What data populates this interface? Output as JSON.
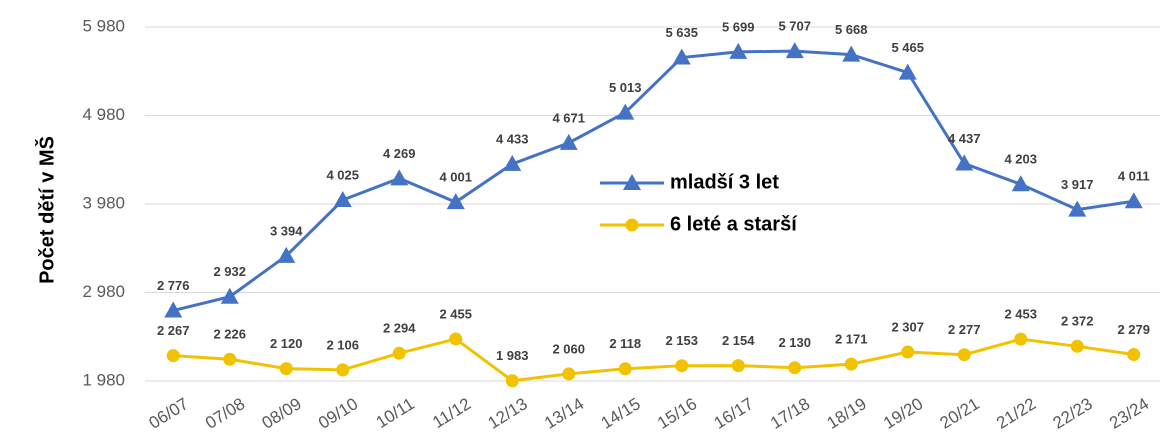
{
  "chart_data": {
    "type": "line",
    "y_label": "Počet dětí v MŠ",
    "categories": [
      "06/07",
      "07/08",
      "08/09",
      "09/10",
      "10/11",
      "11/12",
      "12/13",
      "13/14",
      "14/15",
      "15/16",
      "16/17",
      "17/18",
      "18/19",
      "19/20",
      "20/21",
      "21/22",
      "22/23",
      "23/24"
    ],
    "series": [
      {
        "name": "mladší 3 let",
        "color": "#4472c4",
        "marker": "triangle",
        "values": [
          2776,
          2932,
          3394,
          4025,
          4269,
          4001,
          4433,
          4671,
          5013,
          5635,
          5699,
          5707,
          5668,
          5465,
          4437,
          4203,
          3917,
          4011
        ],
        "value_labels": [
          "2 776",
          "2 932",
          "3 394",
          "4 025",
          "4 269",
          "4 001",
          "4 433",
          "4 671",
          "5 013",
          "5 635",
          "5 699",
          "5 707",
          "5 668",
          "5 465",
          "4 437",
          "4 203",
          "3 917",
          "4 011"
        ]
      },
      {
        "name": "6 leté a starší",
        "color": "#f2c200",
        "marker": "circle",
        "values": [
          2267,
          2226,
          2120,
          2106,
          2294,
          2455,
          1983,
          2060,
          2118,
          2153,
          2154,
          2130,
          2171,
          2307,
          2277,
          2453,
          2372,
          2279
        ],
        "value_labels": [
          "2 267",
          "2 226",
          "2 120",
          "2 106",
          "2 294",
          "2 455",
          "1 983",
          "2 060",
          "2 118",
          "2 153",
          "2 154",
          "2 130",
          "2 171",
          "2 307",
          "2 277",
          "2 453",
          "2 372",
          "2 279"
        ]
      }
    ],
    "ylim": [
      1980,
      5980
    ],
    "yticks": [
      {
        "value": 1980,
        "label": "1 980"
      },
      {
        "value": 2980,
        "label": "2 980"
      },
      {
        "value": 3980,
        "label": "3 980"
      },
      {
        "value": 4980,
        "label": "4 980"
      },
      {
        "value": 5980,
        "label": "5 980"
      }
    ],
    "grid": true,
    "legend": "center"
  }
}
